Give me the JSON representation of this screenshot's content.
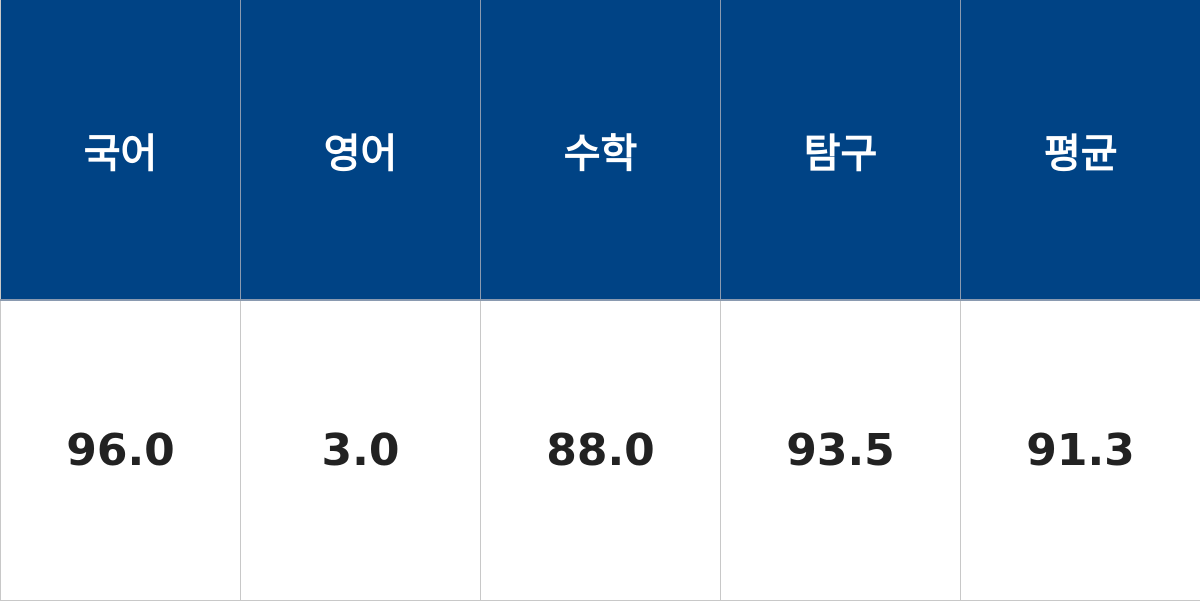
{
  "table": {
    "headers": [
      "국어",
      "영어",
      "수학",
      "탐구",
      "평균"
    ],
    "values": [
      "96.0",
      "3.0",
      "88.0",
      "93.5",
      "91.3"
    ]
  },
  "colors": {
    "header_bg": "#004385",
    "header_text": "#ffffff",
    "cell_text": "#222222",
    "border": "#c8c8c8"
  }
}
